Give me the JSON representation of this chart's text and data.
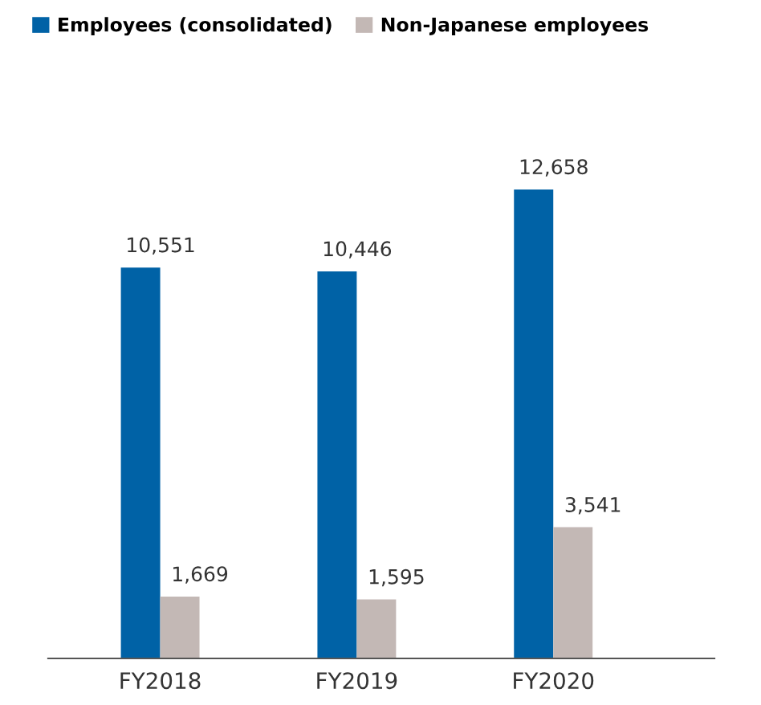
{
  "chart_data": {
    "type": "bar",
    "categories": [
      "FY2018",
      "FY2019",
      "FY2020"
    ],
    "series": [
      {
        "name": "Employees (consolidated)",
        "color": "#0062a6",
        "values": [
          10551,
          10446,
          12658
        ],
        "value_labels": [
          "10,551",
          "10,446",
          "12,658"
        ]
      },
      {
        "name": "Non-Japanese employees",
        "color": "#c3b8b5",
        "values": [
          1669,
          1595,
          3541
        ],
        "value_labels": [
          "1,669",
          "1,595",
          "3,541"
        ]
      }
    ],
    "legend": "top left",
    "grid": false
  }
}
